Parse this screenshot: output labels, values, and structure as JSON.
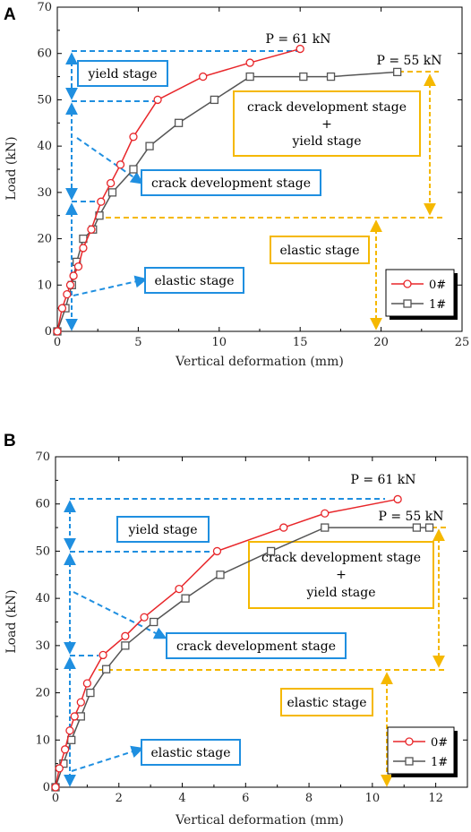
{
  "chart_data": [
    {
      "panel": "A",
      "type": "line",
      "xlabel": "Vertical deformation (mm)",
      "ylabel": "Load (kN)",
      "xlim": [
        0,
        25
      ],
      "ylim": [
        0,
        70
      ],
      "xticks": [
        0,
        5,
        10,
        15,
        20,
        25
      ],
      "yticks": [
        0,
        10,
        20,
        30,
        40,
        50,
        60,
        70
      ],
      "series": [
        {
          "name": "0#",
          "color": "#e8262a",
          "marker": "circle",
          "x": [
            0,
            0.3,
            0.6,
            0.8,
            1.0,
            1.3,
            1.6,
            2.1,
            2.7,
            3.3,
            3.9,
            4.7,
            6.2,
            9.0,
            11.9,
            15.0
          ],
          "y": [
            0,
            5,
            8,
            10,
            12,
            14,
            18,
            22,
            28,
            32,
            36,
            42,
            50,
            55,
            58,
            61
          ]
        },
        {
          "name": "1#",
          "color": "#555555",
          "marker": "square",
          "x": [
            0,
            0.5,
            0.9,
            1.2,
            1.6,
            2.2,
            2.6,
            3.4,
            4.7,
            5.7,
            7.5,
            9.7,
            11.9,
            15.2,
            16.9,
            21.0
          ],
          "y": [
            0,
            5,
            10,
            15,
            20,
            22,
            25,
            30,
            35,
            40,
            45,
            50,
            55,
            55,
            55,
            56
          ]
        }
      ],
      "annotations": {
        "p0": "P = 61 kN",
        "p1": "P = 55 kN",
        "yield": "yield stage",
        "crack": "crack development stage",
        "elastic_blue": "elastic stage",
        "crack_yield_1": "crack development stage",
        "crack_yield_plus": "+",
        "crack_yield_2": "yield stage",
        "elastic_orange": "elastic stage"
      }
    },
    {
      "panel": "B",
      "type": "line",
      "xlabel": "Vertical deformation (mm)",
      "ylabel": "Load (kN)",
      "xlim": [
        0,
        13
      ],
      "ylim": [
        0,
        70
      ],
      "xticks": [
        0,
        2,
        4,
        6,
        8,
        10,
        12
      ],
      "yticks": [
        0,
        10,
        20,
        30,
        40,
        50,
        60,
        70
      ],
      "series": [
        {
          "name": "0#",
          "color": "#e8262a",
          "marker": "circle",
          "x": [
            0,
            0.12,
            0.3,
            0.45,
            0.6,
            0.8,
            1.0,
            1.5,
            2.2,
            2.8,
            3.9,
            5.1,
            7.2,
            8.5,
            10.8
          ],
          "y": [
            0,
            4,
            8,
            12,
            15,
            18,
            22,
            28,
            32,
            36,
            42,
            50,
            55,
            58,
            61
          ]
        },
        {
          "name": "1#",
          "color": "#555555",
          "marker": "square",
          "x": [
            0,
            0.25,
            0.5,
            0.8,
            1.1,
            1.6,
            2.2,
            3.1,
            4.1,
            5.2,
            6.8,
            8.5,
            11.4,
            11.8
          ],
          "y": [
            0,
            5,
            10,
            15,
            20,
            25,
            30,
            35,
            40,
            45,
            50,
            55,
            55,
            55
          ]
        }
      ],
      "annotations": {
        "p0": "P = 61 kN",
        "p1": "P = 55 kN",
        "yield": "yield stage",
        "crack": "crack development stage",
        "elastic_blue": "elastic stage",
        "crack_yield_1": "crack development stage",
        "crack_yield_plus": "+",
        "crack_yield_2": "yield stage",
        "elastic_orange": "elastic stage"
      }
    }
  ],
  "colors": {
    "blue": "#1f8fe0",
    "orange": "#f5b800",
    "red": "#e8262a",
    "gray": "#555555"
  }
}
